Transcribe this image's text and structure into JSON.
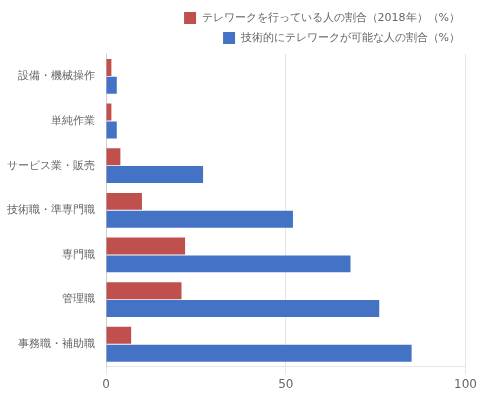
{
  "chart_data": {
    "type": "bar",
    "orientation": "horizontal",
    "categories": [
      "設備・機械操作",
      "単純作業",
      "サービス業・販売",
      "技術職・準専門職",
      "専門職",
      "管理職",
      "事務職・補助職"
    ],
    "series": [
      {
        "name": "テレワークを行っている人の割合（2018年）（%）",
        "color": "#c0504d",
        "values": [
          1.5,
          1.5,
          4,
          10,
          22,
          21,
          7
        ]
      },
      {
        "name": "技術的にテレワークが可能な人の割合（%）",
        "color": "#4472c4",
        "values": [
          3,
          3,
          27,
          52,
          68,
          76,
          85
        ]
      }
    ],
    "xlim": [
      0,
      100
    ],
    "xticks": [
      0,
      50,
      100
    ],
    "grid": true,
    "legend": "upper right"
  }
}
